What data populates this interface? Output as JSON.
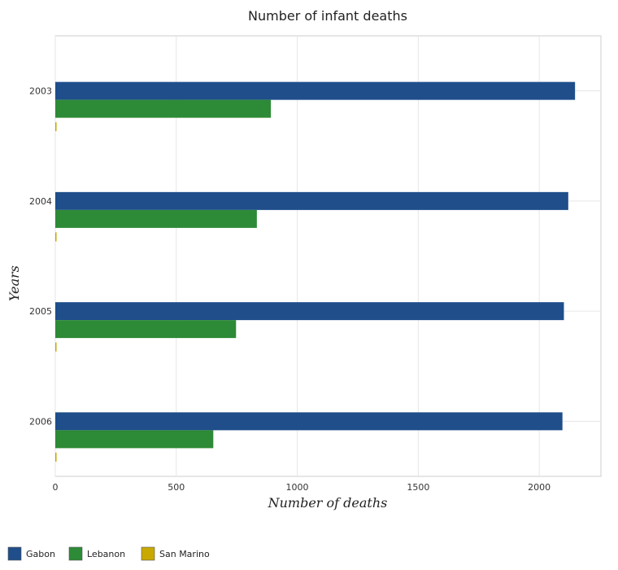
{
  "chart_data": {
    "type": "bar",
    "orientation": "horizontal",
    "title": "Number of infant deaths",
    "xlabel": "Number of deaths",
    "ylabel": "Years",
    "categories": [
      "2003",
      "2004",
      "2005",
      "2006"
    ],
    "series": [
      {
        "name": "Gabon",
        "color": "#1f4e8a",
        "values": [
          2148,
          2120,
          2102,
          2096
        ]
      },
      {
        "name": "Lebanon",
        "color": "#2d8a36",
        "values": [
          891,
          833,
          747,
          653
        ]
      },
      {
        "name": "San Marino",
        "color": "#c9a800",
        "values": [
          0,
          0,
          0,
          0
        ]
      }
    ],
    "xlim": [
      0,
      2255
    ],
    "xticks": [
      0,
      500,
      1000,
      1500,
      2000
    ],
    "xtick_labels": [
      "0",
      "500",
      "1000",
      "1500",
      "2000"
    ],
    "grid": true,
    "legend_position": "bottom-left"
  }
}
